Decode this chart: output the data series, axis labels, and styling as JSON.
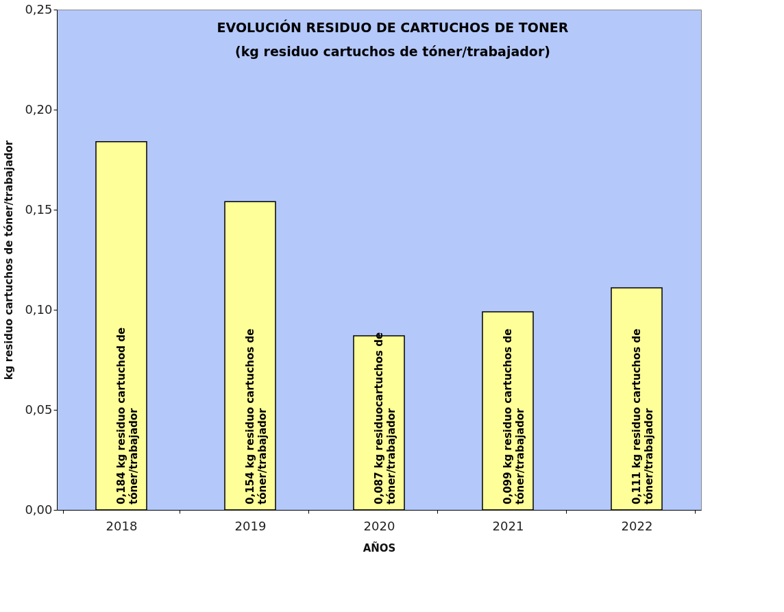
{
  "chart_data": {
    "type": "bar",
    "title": "EVOLUCIÓN RESIDUO DE CARTUCHOS DE TONER",
    "subtitle": "(kg residuo cartuchos de tóner/trabajador)",
    "xlabel": "AÑOS",
    "ylabel": "kg residuo cartuchos de tóner/trabajador",
    "categories": [
      "2018",
      "2019",
      "2020",
      "2021",
      "2022"
    ],
    "values": [
      0.184,
      0.154,
      0.087,
      0.099,
      0.111
    ],
    "value_labels": [
      "0,184 kg residuo cartuchod de\ntóner/trabajador",
      "0,154 kg  residuo cartuchos de\ntóner/trabajador",
      "0,087 kg  residuocartuchos de\ntóner/trabajador",
      "0,099 kg  residuo cartuchos de\ntóner/trabajador",
      "0,111 kg  residuo cartuchos de\ntóner/trabajador"
    ],
    "color": "#ffff99",
    "ylim": [
      0,
      0.25
    ],
    "yticks": [
      {
        "value": 0,
        "label": "0,00"
      },
      {
        "value": 0.05,
        "label": "0,05"
      },
      {
        "value": 0.1,
        "label": "0,10"
      },
      {
        "value": 0.15,
        "label": "0,15"
      },
      {
        "value": 0.2,
        "label": "0,20"
      },
      {
        "value": 0.25,
        "label": "0,25"
      }
    ],
    "grid": false
  }
}
